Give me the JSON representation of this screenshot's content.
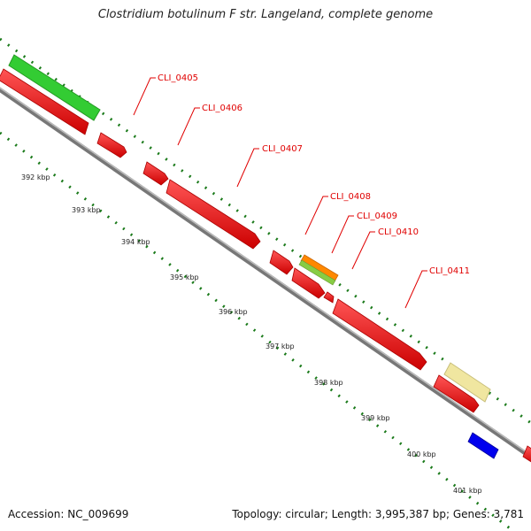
{
  "header": {
    "title": "Clostridium botulinum F str. Langeland, complete genome"
  },
  "footer": {
    "accession": "Accession: NC_009699",
    "summary": "Topology: circular; Length: 3,995,387 bp; Genes: 3,781"
  },
  "ruler": {
    "tick_labels": [
      "392 kbp",
      "393 kbp",
      "394 kbp",
      "395 kbp",
      "396 kbp",
      "397 kbp",
      "398 kbp",
      "399 kbp",
      "400 kbp",
      "401 kbp"
    ]
  },
  "genes": {
    "labels": [
      "CLI_0405",
      "CLI_0406",
      "CLI_0407",
      "CLI_0408",
      "CLI_0409",
      "CLI_0410",
      "CLI_0411"
    ]
  },
  "colors": {
    "gene_forward": "#ff0000",
    "gene_green": "#33cc33",
    "gene_yellow": "#f0e6a0",
    "gene_orange": "#ff8800",
    "gene_blue": "#0000ee",
    "backbone": "#888888",
    "ticks": "#1a7a1a",
    "label_red": "#e00000"
  }
}
